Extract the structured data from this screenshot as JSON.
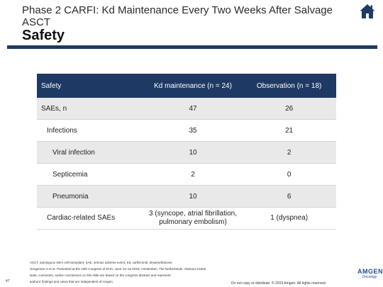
{
  "header": {
    "title": "Phase 2 CARFI: Kd Maintenance Every Two Weeks After Salvage ASCT",
    "subtitle": "Safety"
  },
  "icons": {
    "home": "home-icon"
  },
  "colors": {
    "accent": "#1e3a64",
    "row_alt": "#e9e9e9"
  },
  "table": {
    "headers": [
      "Safety",
      "Kd maintenance (n = 24)",
      "Observation (n = 18)"
    ],
    "rows": [
      {
        "label": "SAEs, n",
        "level": 0,
        "kd": "47",
        "obs": "26"
      },
      {
        "label": "Infections",
        "level": 1,
        "kd": "35",
        "obs": "21"
      },
      {
        "label": "Viral infection",
        "level": 2,
        "kd": "10",
        "obs": "2"
      },
      {
        "label": "Septicemia",
        "level": 2,
        "kd": "2",
        "obs": "0"
      },
      {
        "label": "Pneumonia",
        "level": 2,
        "kd": "10",
        "obs": "6"
      },
      {
        "label": "Cardiac-related SAEs",
        "level": 1,
        "kd": "3 (syncope, atrial fibrillation, pulmonary embolism)",
        "obs": "1 (dyspnea)"
      }
    ]
  },
  "footer": {
    "lines": [
      "ASCT, autologous stem cell transplant; SAE, serious adverse event; Kd, carfilzomib, dexamethasone",
      "Gregersen H et al. Presented at the 24th Congress of EHA; June 13–16 2019; Amsterdam, The Netherlands. Abstract S1602",
      "Data, comments, and/or conclusions on this slide are based on the congress abstract and represent",
      "authors' findings and views that are independent of Amgen."
    ],
    "page_number": "47",
    "copyright": "Do not copy or distribute. © 2019 Amgen. All rights reserved.",
    "logo_text": "AMGEN",
    "logo_sub": "Oncology"
  }
}
